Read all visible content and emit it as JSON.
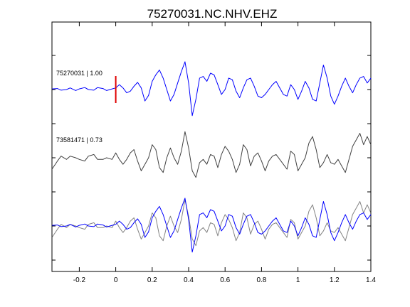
{
  "title": "75270031.NC.NHV.EHZ",
  "chart_data": {
    "type": "line",
    "title": "75270031.NC.NHV.EHZ",
    "xlabel": "",
    "ylabel": "",
    "xlim": [
      -0.35,
      1.4
    ],
    "x_ticks": [
      -0.2,
      0,
      0.2,
      0.4,
      0.6,
      0.8,
      1,
      1.2,
      1.4
    ],
    "x_tick_labels": [
      "-0.2",
      "0",
      "0.2",
      "0.4",
      "0.6",
      "0.8",
      "1",
      "1.2",
      "1.4"
    ],
    "grid": false,
    "pick_time": 0,
    "pick_color": "#e00000",
    "traces": [
      {
        "label": "75270031 | 1.00",
        "color": "#0000ff",
        "x": [
          -0.35,
          -0.32,
          -0.3,
          -0.27,
          -0.25,
          -0.22,
          -0.2,
          -0.17,
          -0.15,
          -0.12,
          -0.1,
          -0.07,
          -0.05,
          -0.02,
          0.0,
          0.02,
          0.04,
          0.06,
          0.08,
          0.1,
          0.12,
          0.14,
          0.16,
          0.18,
          0.2,
          0.22,
          0.24,
          0.26,
          0.28,
          0.3,
          0.32,
          0.34,
          0.36,
          0.38,
          0.4,
          0.42,
          0.44,
          0.46,
          0.48,
          0.5,
          0.52,
          0.54,
          0.56,
          0.58,
          0.6,
          0.62,
          0.64,
          0.66,
          0.68,
          0.7,
          0.72,
          0.74,
          0.76,
          0.78,
          0.8,
          0.82,
          0.84,
          0.86,
          0.88,
          0.9,
          0.92,
          0.94,
          0.96,
          0.98,
          1.0,
          1.02,
          1.04,
          1.06,
          1.08,
          1.1,
          1.12,
          1.14,
          1.16,
          1.18,
          1.2,
          1.22,
          1.24,
          1.26,
          1.28,
          1.3,
          1.32,
          1.34,
          1.36,
          1.38,
          1.4
        ],
        "y": [
          0.02,
          0.03,
          -0.02,
          0.0,
          0.05,
          -0.03,
          0.02,
          0.06,
          0.0,
          -0.02,
          0.06,
          0.03,
          -0.03,
          0.02,
          0.05,
          0.15,
          0.05,
          -0.1,
          -0.05,
          0.1,
          0.22,
          0.05,
          -0.35,
          -0.18,
          0.25,
          0.45,
          0.6,
          0.35,
          0.0,
          -0.35,
          -0.15,
          0.2,
          0.55,
          0.85,
          0.2,
          -0.8,
          -0.3,
          0.35,
          0.4,
          0.25,
          0.5,
          0.45,
          0.15,
          -0.15,
          0.0,
          0.35,
          0.3,
          -0.05,
          -0.25,
          0.05,
          0.3,
          0.35,
          0.1,
          -0.2,
          -0.25,
          -0.15,
          0.0,
          0.15,
          0.25,
          0.05,
          -0.15,
          -0.2,
          0.15,
          0.0,
          -0.3,
          -0.05,
          0.25,
          0.05,
          -0.3,
          -0.35,
          0.2,
          0.75,
          0.35,
          -0.2,
          -0.45,
          -0.2,
          0.1,
          0.35,
          0.1,
          -0.1,
          0.15,
          0.35,
          0.4,
          0.2,
          0.35
        ]
      },
      {
        "label": "73581471 | 0.73",
        "color": "#404040",
        "x": [
          -0.35,
          -0.32,
          -0.3,
          -0.27,
          -0.25,
          -0.22,
          -0.2,
          -0.17,
          -0.15,
          -0.12,
          -0.1,
          -0.07,
          -0.05,
          -0.02,
          0.0,
          0.02,
          0.04,
          0.06,
          0.08,
          0.1,
          0.12,
          0.14,
          0.16,
          0.18,
          0.2,
          0.22,
          0.24,
          0.26,
          0.28,
          0.3,
          0.32,
          0.34,
          0.36,
          0.38,
          0.4,
          0.42,
          0.44,
          0.46,
          0.48,
          0.5,
          0.52,
          0.54,
          0.56,
          0.58,
          0.6,
          0.62,
          0.64,
          0.66,
          0.68,
          0.7,
          0.72,
          0.74,
          0.76,
          0.78,
          0.8,
          0.82,
          0.84,
          0.86,
          0.88,
          0.9,
          0.92,
          0.94,
          0.96,
          0.98,
          1.0,
          1.02,
          1.04,
          1.06,
          1.08,
          1.1,
          1.12,
          1.14,
          1.16,
          1.18,
          1.2,
          1.22,
          1.24,
          1.26,
          1.28,
          1.3,
          1.32,
          1.34,
          1.36,
          1.38,
          1.4
        ],
        "y": [
          -0.35,
          -0.1,
          0.05,
          -0.05,
          0.05,
          0.0,
          -0.05,
          -0.1,
          0.05,
          0.1,
          -0.05,
          -0.05,
          0.0,
          -0.05,
          0.15,
          -0.05,
          -0.2,
          -0.05,
          0.15,
          0.25,
          -0.1,
          -0.4,
          -0.2,
          0.0,
          0.4,
          0.25,
          -0.3,
          -0.45,
          0.0,
          0.3,
          0.0,
          -0.2,
          0.2,
          0.8,
          0.3,
          -0.4,
          -0.6,
          -0.15,
          -0.05,
          -0.2,
          0.1,
          0.05,
          -0.3,
          0.1,
          0.35,
          0.2,
          -0.05,
          -0.45,
          -0.2,
          0.4,
          0.25,
          -0.25,
          0.05,
          0.15,
          -0.1,
          -0.4,
          -0.1,
          0.05,
          0.1,
          -0.05,
          -0.2,
          -0.35,
          0.2,
          0.1,
          -0.4,
          -0.2,
          0.0,
          0.45,
          0.65,
          0.25,
          -0.3,
          -0.15,
          0.1,
          -0.15,
          -0.2,
          -0.05,
          -0.25,
          -0.45,
          -0.05,
          0.35,
          0.55,
          0.75,
          0.4,
          0.65,
          0.4
        ]
      }
    ]
  }
}
